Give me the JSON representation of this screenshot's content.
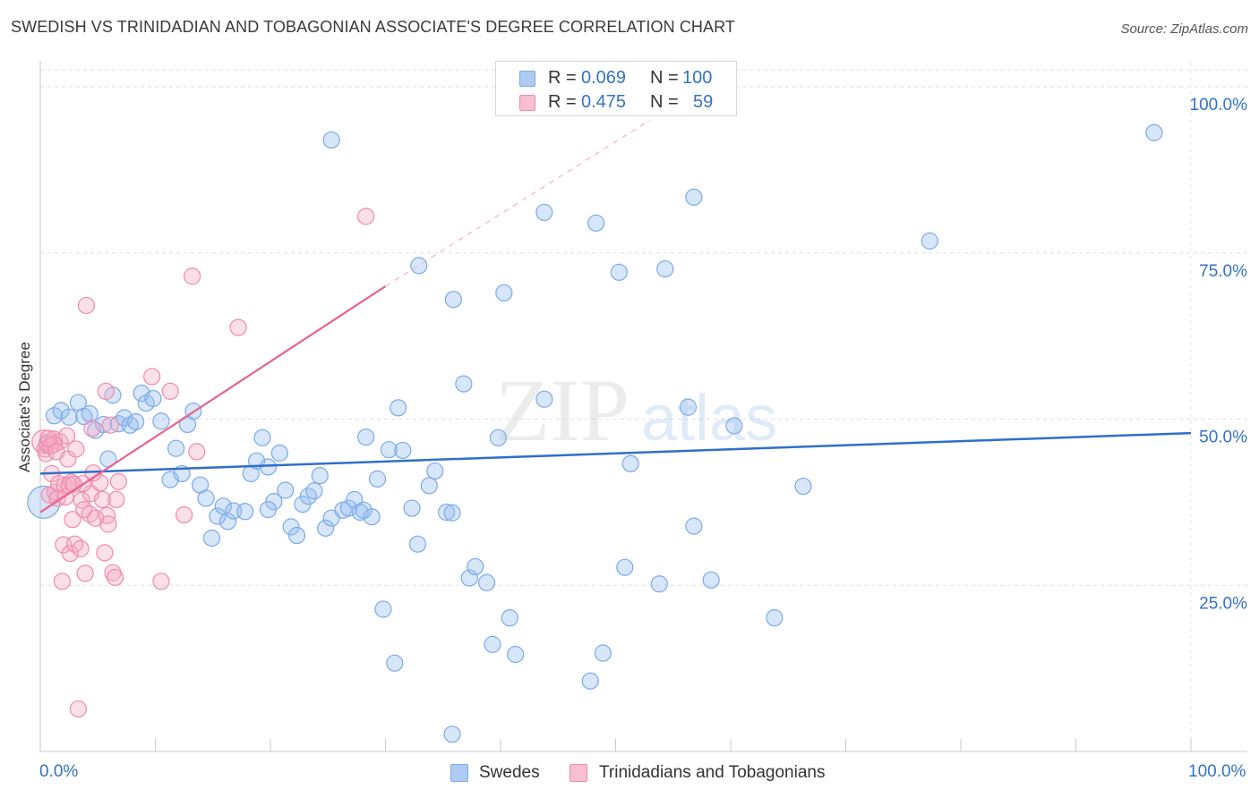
{
  "title": "SWEDISH VS TRINIDADIAN AND TOBAGONIAN ASSOCIATE'S DEGREE CORRELATION CHART",
  "source": "Source: ZipAtlas.com",
  "watermark": {
    "zip": "ZIP",
    "atlas": "atlas"
  },
  "legend": {
    "r_label": "R =",
    "n_label": "N =",
    "series": [
      {
        "name": "Swedes",
        "r": "0.069",
        "n": "100",
        "color": "#7aaae8",
        "fill": "#aecbf1"
      },
      {
        "name": "Trinidadians and Tobagonians",
        "r": "0.475",
        "n": "59",
        "color": "#f08aab",
        "fill": "#f7bfd1"
      }
    ]
  },
  "chart_data": {
    "type": "scatter",
    "title": "SWEDISH VS TRINIDADIAN AND TOBAGONIAN ASSOCIATE'S DEGREE CORRELATION CHART",
    "xlabel": "",
    "ylabel": "Associate's Degree",
    "xlim": [
      0,
      100
    ],
    "ylim": [
      0,
      100
    ],
    "x_tick_labels": [
      "0.0%",
      "100.0%"
    ],
    "y_tick_labels": [
      "100.0%",
      "75.0%",
      "50.0%",
      "25.0%"
    ],
    "y_ticks": [
      100,
      75,
      50,
      25
    ],
    "series": [
      {
        "name": "Swedes",
        "color": "#7aaae8",
        "line_color": "#2f6fcc",
        "trend": {
          "x0": 0,
          "y0": 41.8,
          "x1": 100,
          "y1": 47.9
        },
        "points": [
          [
            0.3,
            37.5
          ],
          [
            0.6,
            46.5
          ],
          [
            1.2,
            50.5
          ],
          [
            1.8,
            51.3
          ],
          [
            2.5,
            50.3
          ],
          [
            3.3,
            52.5
          ],
          [
            3.8,
            50.4
          ],
          [
            4.3,
            50.8
          ],
          [
            4.8,
            48.3
          ],
          [
            5.5,
            49.2
          ],
          [
            5.9,
            44.0
          ],
          [
            6.3,
            53.6
          ],
          [
            6.8,
            49.3
          ],
          [
            7.3,
            50.2
          ],
          [
            7.8,
            49.1
          ],
          [
            8.3,
            49.6
          ],
          [
            8.8,
            53.9
          ],
          [
            9.2,
            52.4
          ],
          [
            9.8,
            53.1
          ],
          [
            10.5,
            49.7
          ],
          [
            11.3,
            40.9
          ],
          [
            11.8,
            45.6
          ],
          [
            12.3,
            41.8
          ],
          [
            12.8,
            49.2
          ],
          [
            13.3,
            51.2
          ],
          [
            13.9,
            40.1
          ],
          [
            14.4,
            38.1
          ],
          [
            14.9,
            32.1
          ],
          [
            15.4,
            35.4
          ],
          [
            15.9,
            36.9
          ],
          [
            16.3,
            34.6
          ],
          [
            16.8,
            36.2
          ],
          [
            17.8,
            36.1
          ],
          [
            18.3,
            41.8
          ],
          [
            18.8,
            43.7
          ],
          [
            19.3,
            47.2
          ],
          [
            19.8,
            42.8
          ],
          [
            20.3,
            37.6
          ],
          [
            20.8,
            44.9
          ],
          [
            21.3,
            39.3
          ],
          [
            21.8,
            33.8
          ],
          [
            22.3,
            32.5
          ],
          [
            22.8,
            37.2
          ],
          [
            23.3,
            38.4
          ],
          [
            23.8,
            39.2
          ],
          [
            24.3,
            41.5
          ],
          [
            24.8,
            33.6
          ],
          [
            25.3,
            35.1
          ],
          [
            25.3,
            92.0
          ],
          [
            26.3,
            36.3
          ],
          [
            26.8,
            36.6
          ],
          [
            27.3,
            37.9
          ],
          [
            27.8,
            36.0
          ],
          [
            28.3,
            47.3
          ],
          [
            28.8,
            35.3
          ],
          [
            29.3,
            41.0
          ],
          [
            29.8,
            21.4
          ],
          [
            30.3,
            45.4
          ],
          [
            30.8,
            13.3
          ],
          [
            31.1,
            51.7
          ],
          [
            31.5,
            45.3
          ],
          [
            32.3,
            36.6
          ],
          [
            32.8,
            31.2
          ],
          [
            32.9,
            73.1
          ],
          [
            33.8,
            40.0
          ],
          [
            34.3,
            42.2
          ],
          [
            35.3,
            36.0
          ],
          [
            35.8,
            35.9
          ],
          [
            35.8,
            2.6
          ],
          [
            35.9,
            68.0
          ],
          [
            36.8,
            55.3
          ],
          [
            37.3,
            26.1
          ],
          [
            37.8,
            27.8
          ],
          [
            38.8,
            25.4
          ],
          [
            39.3,
            16.1
          ],
          [
            39.8,
            47.2
          ],
          [
            40.3,
            69.0
          ],
          [
            40.8,
            20.1
          ],
          [
            41.3,
            14.6
          ],
          [
            43.8,
            53.0
          ],
          [
            43.8,
            81.1
          ],
          [
            47.8,
            10.6
          ],
          [
            48.3,
            79.5
          ],
          [
            48.9,
            14.8
          ],
          [
            50.3,
            72.1
          ],
          [
            50.8,
            27.7
          ],
          [
            51.3,
            43.3
          ],
          [
            53.8,
            25.2
          ],
          [
            54.3,
            72.6
          ],
          [
            56.3,
            51.8
          ],
          [
            56.8,
            33.9
          ],
          [
            56.8,
            83.4
          ],
          [
            58.3,
            25.8
          ],
          [
            60.3,
            49.0
          ],
          [
            63.8,
            20.1
          ],
          [
            66.3,
            39.9
          ],
          [
            77.3,
            76.8
          ],
          [
            96.8,
            93.1
          ],
          [
            19.8,
            36.4
          ],
          [
            28.1,
            36.3
          ]
        ]
      },
      {
        "name": "Trinidadians and Tobagonians",
        "color": "#f08aab",
        "line_color": "#e8628d",
        "trend": {
          "x0": 0,
          "y0": 36.0,
          "x1": 30,
          "y1": 70.0,
          "dash_to": {
            "x": 53,
            "y": 95
          }
        },
        "points": [
          [
            0.3,
            46.6
          ],
          [
            0.4,
            45.5
          ],
          [
            0.5,
            44.8
          ],
          [
            0.6,
            46.2
          ],
          [
            0.8,
            38.6
          ],
          [
            1.0,
            41.8
          ],
          [
            1.2,
            47.0
          ],
          [
            1.3,
            39.0
          ],
          [
            1.5,
            38.1
          ],
          [
            1.6,
            40.3
          ],
          [
            1.7,
            46.6
          ],
          [
            1.9,
            25.6
          ],
          [
            2.0,
            31.1
          ],
          [
            2.1,
            40.0
          ],
          [
            2.2,
            38.3
          ],
          [
            2.3,
            47.5
          ],
          [
            2.4,
            44.0
          ],
          [
            2.6,
            29.8
          ],
          [
            2.7,
            40.5
          ],
          [
            2.8,
            34.9
          ],
          [
            3.0,
            31.2
          ],
          [
            3.1,
            45.5
          ],
          [
            3.3,
            6.4
          ],
          [
            3.5,
            30.5
          ],
          [
            3.6,
            37.8
          ],
          [
            3.8,
            36.4
          ],
          [
            3.9,
            26.8
          ],
          [
            4.0,
            67.1
          ],
          [
            4.3,
            35.7
          ],
          [
            4.4,
            38.8
          ],
          [
            4.5,
            48.6
          ],
          [
            4.8,
            35.1
          ],
          [
            5.2,
            40.4
          ],
          [
            5.4,
            37.9
          ],
          [
            5.6,
            29.9
          ],
          [
            5.7,
            54.2
          ],
          [
            5.8,
            35.5
          ],
          [
            5.9,
            34.2
          ],
          [
            6.1,
            49.1
          ],
          [
            6.3,
            26.9
          ],
          [
            6.5,
            26.2
          ],
          [
            6.6,
            37.9
          ],
          [
            6.8,
            40.6
          ],
          [
            9.7,
            56.4
          ],
          [
            10.5,
            25.6
          ],
          [
            11.3,
            54.2
          ],
          [
            12.5,
            35.6
          ],
          [
            13.2,
            71.5
          ],
          [
            13.6,
            45.1
          ],
          [
            17.2,
            63.8
          ],
          [
            28.3,
            80.5
          ],
          [
            1.2,
            46.2
          ],
          [
            0.9,
            46.0
          ],
          [
            2.5,
            40.1
          ],
          [
            3.7,
            40.3
          ],
          [
            1.4,
            45.1
          ],
          [
            2.9,
            40.2
          ],
          [
            0.7,
            47.1
          ],
          [
            4.6,
            41.9
          ]
        ]
      }
    ]
  }
}
